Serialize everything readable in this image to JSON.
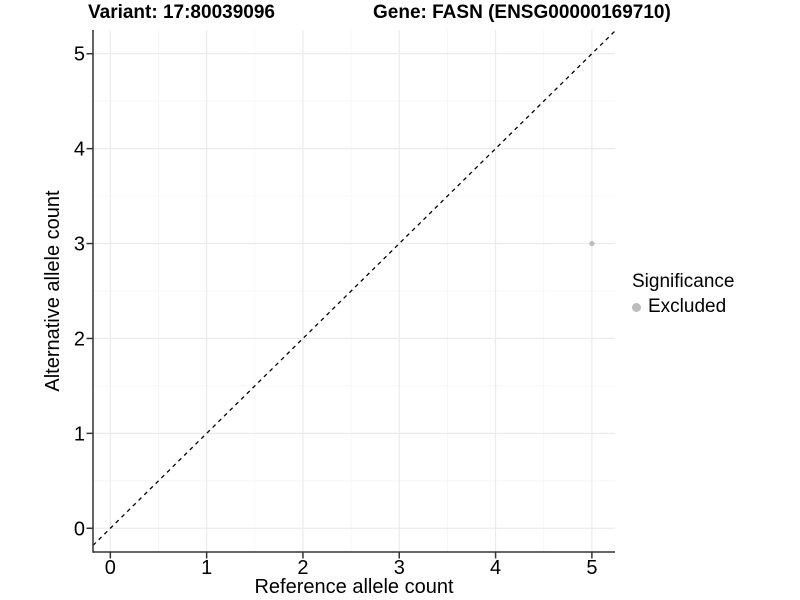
{
  "chart_data": {
    "type": "scatter",
    "title_left": "Variant: 17:80039096",
    "title_right": "Gene: FASN (ENSG00000169710)",
    "xlabel": "Reference allele count",
    "ylabel": "Alternative allele count",
    "xlim": [
      -0.18,
      5.24
    ],
    "ylim": [
      -0.25,
      5.25
    ],
    "xticks": [
      0,
      1,
      2,
      3,
      4,
      5
    ],
    "yticks": [
      0,
      1,
      2,
      3,
      4,
      5
    ],
    "grid": {
      "major": true,
      "minor": true,
      "major_color": "#ebebeb",
      "minor_color": "#f5f5f5"
    },
    "reference_line": {
      "kind": "identity",
      "style": "dashed",
      "color": "#000000",
      "dash": "4 4"
    },
    "points": [
      {
        "x": 5,
        "y": 3,
        "significance": "Excluded",
        "color": "#bdbdbd",
        "radius": 2.6
      }
    ],
    "legend": {
      "title": "Significance",
      "position": "right",
      "items": [
        {
          "label": "Excluded",
          "color": "#bdbdbd"
        }
      ]
    },
    "axis_color": "#333333",
    "background": "#ffffff"
  }
}
